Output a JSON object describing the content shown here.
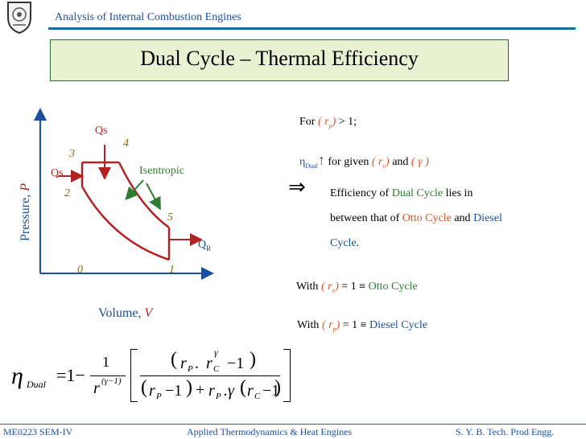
{
  "header": {
    "course_title": "Analysis of Internal Combustion Engines"
  },
  "slide_title": "Dual Cycle – Thermal Efficiency",
  "diagram": {
    "y_axis_label": "Pressure, ",
    "y_axis_var": "P",
    "x_axis_label": "Volume, ",
    "x_axis_var": "V",
    "point_labels": {
      "p0": "0",
      "p1": "1",
      "p2": "2",
      "p3": "3",
      "p4": "4",
      "p5": "5"
    },
    "heat_in_top": "Qs",
    "heat_in_left": "Qs",
    "heat_out": "Q",
    "heat_out_sub": "R",
    "isentropic_label": "Isentropic"
  },
  "right_text": {
    "for_prefix": "For ",
    "rp_open": "( r",
    "rp_sub": "p",
    "rp_close": ")",
    "for_suffix": " > 1;",
    "eta": "η",
    "eta_sub": "Dual",
    "arrow_up": "↑",
    "given_text": " for given ",
    "rc_open": "( r",
    "rc_sub": "c",
    "rc_close": ")",
    "and_text": " and ",
    "gamma_group": "( γ )",
    "implies": "⇒",
    "eff_line1_prefix": "Efficiency of ",
    "dual_cycle": "Dual Cycle",
    "eff_line1_suffix": " lies in",
    "eff_line2_prefix": "between that of ",
    "otto_cycle": "Otto Cycle",
    "and_word": " and ",
    "diesel_word": "Diesel",
    "cycle_word": "Cycle",
    "period": ".",
    "with_word": "With ",
    "eq_one": " = 1 ≡ ",
    "otto_result": "Otto Cycle",
    "diesel_result": "Diesel Cycle"
  },
  "formula": {
    "eta": "η",
    "eta_sub": "Dual",
    "equals_one_minus": "=1−",
    "one": "1",
    "r": "r",
    "exp_gamma_minus_one": "(γ−1)",
    "gamma": "γ",
    "num_r": "r",
    "P": "P",
    "dot": " .",
    "C": "C",
    "minus_one": "−1",
    "plus": "+",
    "dot_gamma": ".γ",
    "open_p": "(",
    "close_p": ")"
  },
  "footer": {
    "left": "ME0223 SEM-IV",
    "center": "Applied Thermodynamics & Heat Engines",
    "right": "S. Y. B. Tech. Prod Engg."
  },
  "colors": {
    "accent_blue": "#1a4fa0",
    "curve_red": "#b22222",
    "arrow_green": "#2e7d32",
    "highlight_orange": "#d9531e",
    "title_bg": "#e9f1d2"
  }
}
